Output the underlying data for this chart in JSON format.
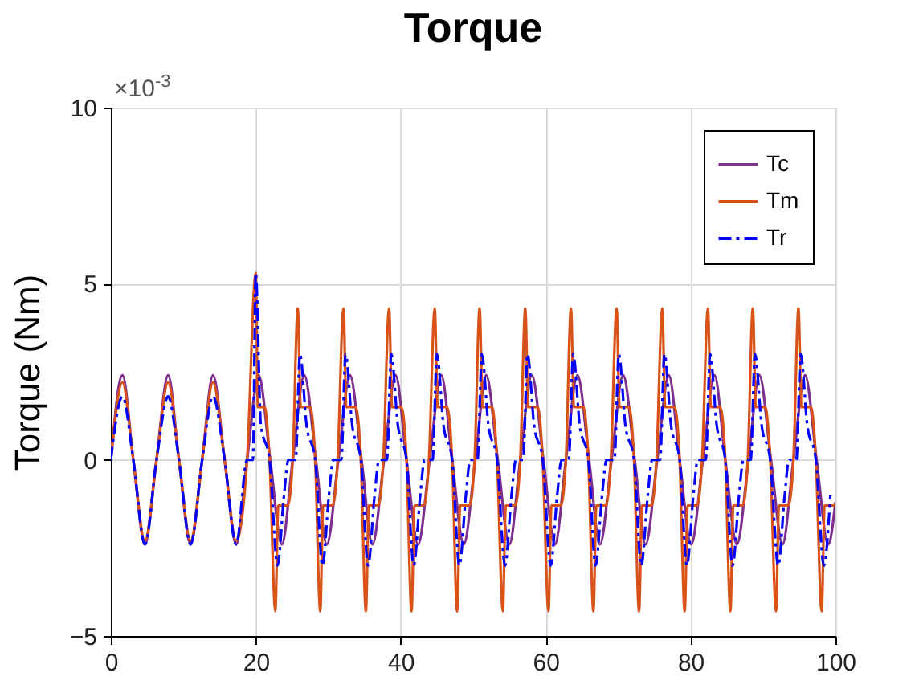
{
  "chart_data": {
    "type": "line",
    "title": "Torque",
    "ylabel": "Torque (Nm)",
    "annotations": [
      "×10$^{-3}$"
    ],
    "xlim": [
      0,
      100
    ],
    "xticks": [
      0,
      20,
      40,
      60,
      80,
      100
    ],
    "ylim": [
      -5,
      10
    ],
    "yticks": [
      -5,
      0,
      5,
      10
    ],
    "grid": true,
    "legend": "top right",
    "marker": "none",
    "series": [
      {
        "name": "Tc",
        "color": "#7e2f8e",
        "line_style": "solid",
        "x": [
          0,
          1.6,
          3.1,
          4.7,
          6.3,
          7.9,
          9.4,
          11.0,
          12.6,
          14.1,
          15.7,
          17.3,
          18.8,
          20.4,
          22.0,
          23.6,
          25.1,
          26.7,
          28.3,
          29.8,
          31.4,
          33.0,
          34.6,
          36.1,
          37.7,
          39.3,
          40.8,
          42.4,
          44.0,
          45.6,
          47.1,
          48.7,
          50.3,
          51.8,
          53.4,
          55.0,
          56.5,
          58.1,
          59.7,
          61.3,
          62.8,
          64.4,
          66.0,
          67.5,
          69.1,
          70.7,
          72.3,
          73.8,
          75.4,
          77.0,
          78.5,
          80.1,
          81.7,
          83.3,
          84.8,
          86.4,
          88.0,
          89.5,
          91.1,
          92.7,
          94.2,
          95.8,
          97.4,
          99.0,
          100
        ],
        "values": [
          0,
          2.4,
          0,
          -2.4,
          0,
          2.4,
          0,
          -2.4,
          0,
          2.4,
          0,
          -2.4,
          0,
          2.4,
          0,
          -2.4,
          0,
          2.4,
          0,
          -2.4,
          0,
          2.4,
          0,
          -2.4,
          0,
          2.4,
          0,
          -2.4,
          0,
          2.4,
          0,
          -2.4,
          0,
          2.4,
          0,
          -2.4,
          0,
          2.4,
          0,
          -2.4,
          0,
          2.4,
          0,
          -2.4,
          0,
          2.4,
          0,
          -2.4,
          0,
          2.4,
          0,
          -2.4,
          0,
          2.4,
          0,
          -2.4,
          0,
          2.4,
          0,
          -2.4,
          0,
          2.4,
          0,
          -2.4,
          -1.2
        ]
      },
      {
        "name": "Tm",
        "color": "#d95319",
        "line_style": "solid",
        "x": [
          0,
          1.6,
          3.1,
          4.7,
          6.3,
          7.9,
          9.4,
          11.0,
          12.6,
          14.1,
          15.7,
          17.3,
          18.8,
          20.0,
          20.3,
          21.2,
          21.9,
          22.7,
          23.1,
          24.4,
          25.1,
          25.8,
          26.2,
          27.5,
          28.2,
          28.9,
          29.3,
          30.6,
          31.3,
          32.1,
          32.5,
          33.8,
          34.5,
          35.2,
          35.6,
          36.9,
          37.6,
          38.4,
          38.8,
          40.1,
          40.8,
          41.5,
          41.9,
          43.2,
          43.9,
          44.7,
          45.1,
          46.4,
          47.1,
          47.8,
          48.2,
          49.5,
          50.2,
          50.9,
          51.3,
          52.6,
          53.3,
          54.1,
          54.5,
          55.8,
          56.5,
          57.2,
          57.6,
          58.9,
          59.6,
          60.4,
          60.8,
          62.1,
          62.8,
          63.5,
          63.9,
          65.2,
          65.9,
          66.6,
          67.0,
          68.3,
          69.0,
          69.8,
          70.2,
          71.5,
          72.2,
          72.9,
          73.3,
          74.6,
          75.3,
          76.1,
          76.5,
          77.8,
          78.5,
          79.2,
          79.6,
          80.9,
          81.6,
          82.4,
          82.8,
          84.1,
          84.8,
          85.5,
          85.9,
          87.2,
          87.9,
          88.6,
          89.0,
          90.3,
          91.0,
          91.8,
          92.2,
          93.5,
          94.2,
          94.9,
          95.3,
          96.6,
          97.3,
          98.1,
          98.5,
          100
        ],
        "values": [
          0,
          2.2,
          0,
          -2.3,
          0,
          2.2,
          0,
          -2.3,
          0,
          2.2,
          0,
          -2.3,
          0,
          5.3,
          1.5,
          1.5,
          0,
          -4.3,
          -1.3,
          -1.3,
          0,
          4.3,
          1.5,
          1.5,
          0,
          -4.3,
          -1.3,
          -1.3,
          0,
          4.3,
          1.5,
          1.5,
          0,
          -4.3,
          -1.3,
          -1.3,
          0,
          4.3,
          1.5,
          1.5,
          0,
          -4.3,
          -1.3,
          -1.3,
          0,
          4.3,
          1.5,
          1.5,
          0,
          -4.3,
          -1.3,
          -1.3,
          0,
          4.3,
          1.5,
          1.5,
          0,
          -4.3,
          -1.3,
          -1.3,
          0,
          4.3,
          1.5,
          1.5,
          0,
          -4.3,
          -1.3,
          -1.3,
          0,
          4.3,
          1.5,
          1.5,
          0,
          -4.3,
          -1.3,
          -1.3,
          0,
          4.3,
          1.5,
          1.5,
          0,
          -4.3,
          -1.3,
          -1.3,
          0,
          4.3,
          1.5,
          1.5,
          0,
          -4.3,
          -1.3,
          -1.3,
          0,
          4.3,
          1.5,
          1.5,
          0,
          -4.3,
          -1.3,
          -1.3,
          0,
          4.3,
          1.5,
          1.5,
          0,
          -4.3,
          -1.3,
          -1.3,
          0,
          4.3,
          1.5,
          1.5,
          0,
          -4.3,
          -1.3,
          -1.3
        ]
      },
      {
        "name": "Tr",
        "color": "#0000ff",
        "line_style": "dashed",
        "x": [
          0,
          1.6,
          3.1,
          4.7,
          6.3,
          7.9,
          9.4,
          11.0,
          12.6,
          14.1,
          15.7,
          17.3,
          18.8,
          19.6,
          20.0,
          20.7,
          21.9,
          23.0,
          23.9,
          24.5,
          25.5,
          26.1,
          27.0,
          28.2,
          29.2,
          30.1,
          30.7,
          31.8,
          32.4,
          33.3,
          34.5,
          35.5,
          36.4,
          37.0,
          38.1,
          38.7,
          39.6,
          40.8,
          41.8,
          42.7,
          43.3,
          44.4,
          45.0,
          45.9,
          47.1,
          48.1,
          49.0,
          49.6,
          50.6,
          51.2,
          52.1,
          53.3,
          54.4,
          55.3,
          55.9,
          56.9,
          57.5,
          58.4,
          59.6,
          60.7,
          61.6,
          62.2,
          63.2,
          63.8,
          64.7,
          65.9,
          66.9,
          67.8,
          68.4,
          69.5,
          70.1,
          71.0,
          72.2,
          73.2,
          74.1,
          74.7,
          75.8,
          76.4,
          77.3,
          78.5,
          79.5,
          80.4,
          81.0,
          82.1,
          82.7,
          83.6,
          84.8,
          85.8,
          86.7,
          87.3,
          88.3,
          88.9,
          89.8,
          91.0,
          92.1,
          93.0,
          93.6,
          94.6,
          95.2,
          96.1,
          97.3,
          98.4,
          99.3
        ],
        "values": [
          0,
          1.8,
          0,
          -2.4,
          0,
          1.8,
          0,
          -2.4,
          0,
          1.8,
          0,
          -2.4,
          0,
          0,
          5.3,
          1.0,
          0,
          -3.0,
          -1.0,
          0,
          0,
          3.0,
          1.0,
          0,
          -3.0,
          -1.0,
          0,
          0,
          3.0,
          1.0,
          0,
          -3.0,
          -1.0,
          0,
          0,
          3.0,
          1.0,
          0,
          -3.0,
          -1.0,
          0,
          0,
          3.0,
          1.0,
          0,
          -3.0,
          -1.0,
          0,
          0,
          3.0,
          1.0,
          0,
          -3.0,
          -1.0,
          0,
          0,
          3.0,
          1.0,
          0,
          -3.0,
          -1.0,
          0,
          0,
          3.0,
          1.0,
          0,
          -3.0,
          -1.0,
          0,
          0,
          3.0,
          1.0,
          0,
          -3.0,
          -1.0,
          0,
          0,
          3.0,
          1.0,
          0,
          -3.0,
          -1.0,
          0,
          0,
          3.0,
          1.0,
          0,
          -3.0,
          -1.0,
          0,
          0,
          3.0,
          1.0,
          0,
          -3.0,
          -1.0,
          0,
          0,
          3.0,
          1.0,
          0,
          -3.0,
          -1.0
        ]
      }
    ]
  }
}
